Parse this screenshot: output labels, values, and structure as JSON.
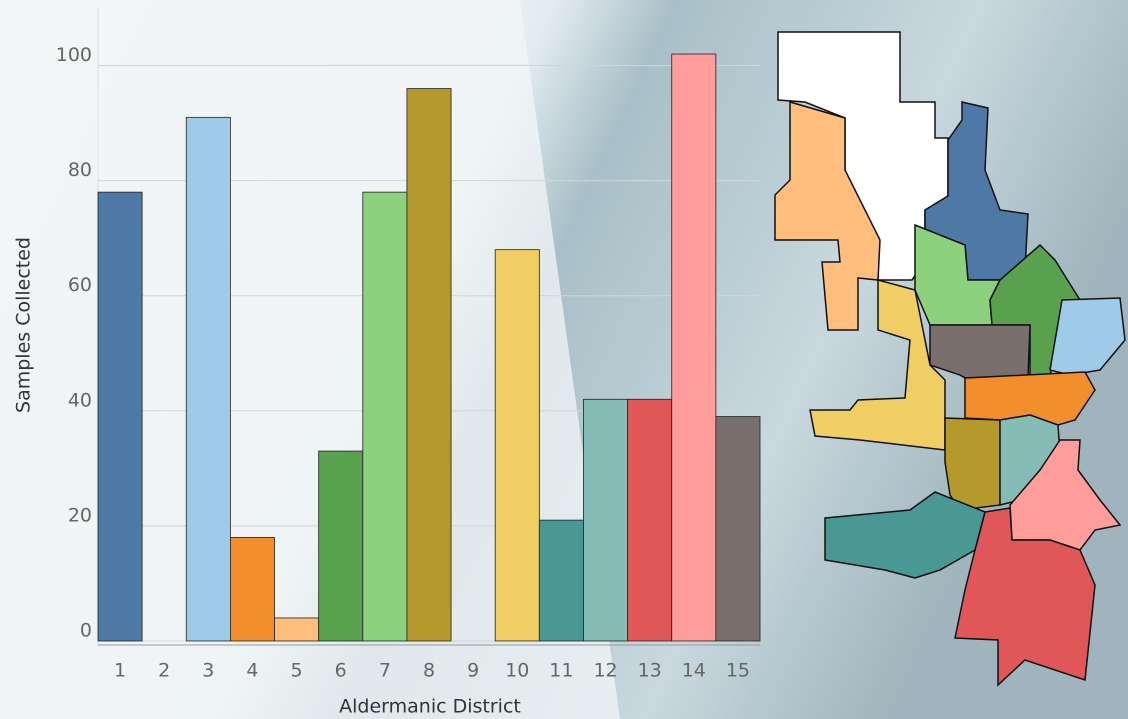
{
  "chart_data": {
    "type": "bar",
    "x_label": "Aldermanic District",
    "y_label": "Samples Collected",
    "categories": [
      "1",
      "2",
      "3",
      "4",
      "5",
      "6",
      "7",
      "8",
      "9",
      "10",
      "11",
      "12",
      "13",
      "14",
      "15"
    ],
    "values": [
      78,
      null,
      91,
      18,
      4,
      33,
      78,
      96,
      null,
      68,
      21,
      42,
      42,
      102,
      39
    ],
    "colors": [
      "#4e79a7",
      null,
      "#a0cbe8",
      "#f28e2b",
      "#ffbe7d",
      "#59a14f",
      "#8cd17d",
      "#b6992d",
      null,
      "#f1ce63",
      "#499894",
      "#86bcb6",
      "#e15759",
      "#ff9d9a",
      "#79706e"
    ],
    "ylim": [
      -0.7,
      110
    ],
    "yticks": [
      0,
      20,
      40,
      60,
      80,
      100
    ],
    "grid": true
  }
}
